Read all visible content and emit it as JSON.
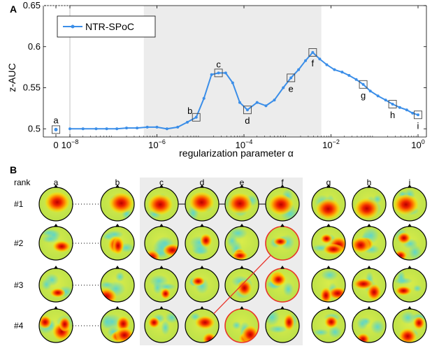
{
  "panel_a_letter": "A",
  "panel_b_letter": "B",
  "chart_data": {
    "type": "line",
    "xscale": "log",
    "xlabel": "regularization parameter α",
    "ylabel": "z-AUC",
    "ylim": [
      0.49,
      0.65
    ],
    "y_ticks": [
      "0.5",
      "0.55",
      "0.6",
      "0.65"
    ],
    "x_ticks": [
      "0",
      "10^-8",
      "10^-6",
      "10^-4",
      "10^-2",
      "10^0"
    ],
    "x_tick_values": [
      0,
      1e-08,
      1e-06,
      0.0001,
      0.01,
      1
    ],
    "shaded_region": [
      5e-07,
      0.006
    ],
    "legend": {
      "label": "NTR-SPoC",
      "position": "top-left"
    },
    "color": "#3b8ee8",
    "zero_point": {
      "x": 0,
      "y": 0.499,
      "label": "a"
    },
    "series": [
      {
        "name": "NTR-SPoC",
        "x": [
          1e-08,
          2e-08,
          4e-08,
          7e-08,
          1.2e-07,
          2e-07,
          3.5e-07,
          6e-07,
          1e-06,
          1.7e-06,
          3e-06,
          5e-06,
          8e-06,
          1.2e-05,
          1.8e-05,
          2.6e-05,
          3.8e-05,
          5.5e-05,
          8e-05,
          0.00012,
          0.0002,
          0.00032,
          0.0005,
          0.0008,
          0.0012,
          0.0018,
          0.0026,
          0.0038,
          0.0055,
          0.008,
          0.012,
          0.018,
          0.026,
          0.038,
          0.055,
          0.08,
          0.12,
          0.18,
          0.26,
          0.38,
          0.55,
          0.75,
          1
        ],
        "y": [
          0.5,
          0.5,
          0.5,
          0.5,
          0.5,
          0.501,
          0.501,
          0.502,
          0.502,
          0.5,
          0.502,
          0.508,
          0.514,
          0.537,
          0.566,
          0.568,
          0.568,
          0.556,
          0.532,
          0.523,
          0.532,
          0.528,
          0.535,
          0.55,
          0.562,
          0.572,
          0.583,
          0.593,
          0.585,
          0.578,
          0.572,
          0.569,
          0.565,
          0.56,
          0.554,
          0.546,
          0.54,
          0.535,
          0.53,
          0.526,
          0.523,
          0.519,
          0.517
        ]
      }
    ],
    "markers": [
      {
        "label": "a",
        "x": 0,
        "y": 0.499
      },
      {
        "label": "b",
        "x": 8e-06,
        "y": 0.514
      },
      {
        "label": "c",
        "x": 2.6e-05,
        "y": 0.568
      },
      {
        "label": "d",
        "x": 0.00012,
        "y": 0.523
      },
      {
        "label": "e",
        "x": 0.0012,
        "y": 0.562
      },
      {
        "label": "f",
        "x": 0.0038,
        "y": 0.593
      },
      {
        "label": "g",
        "x": 0.055,
        "y": 0.554
      },
      {
        "label": "h",
        "x": 0.26,
        "y": 0.53
      },
      {
        "label": "i",
        "x": 1,
        "y": 0.517
      }
    ]
  },
  "grid": {
    "row_header": "rank",
    "columns": [
      "a",
      "b",
      "c",
      "d",
      "e",
      "f",
      "g",
      "h",
      "i"
    ],
    "rows": [
      "#1",
      "#2",
      "#3",
      "#4"
    ],
    "highlighted": [
      [
        4,
        3
      ],
      [
        3,
        4
      ],
      [
        2,
        5
      ],
      [
        1,
        5
      ]
    ],
    "connected_rows": [
      0
    ],
    "connection": [
      [
        1,
        5
      ],
      [
        3,
        3
      ]
    ]
  }
}
